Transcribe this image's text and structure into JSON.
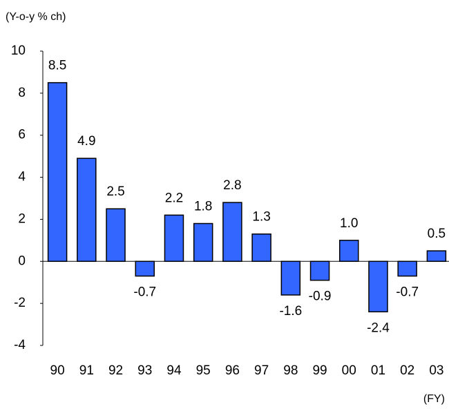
{
  "chart_data": {
    "type": "bar",
    "y_unit_label": "(Y-o-y % ch)",
    "x_unit_label": "(FY)",
    "categories": [
      "90",
      "91",
      "92",
      "93",
      "94",
      "95",
      "96",
      "97",
      "98",
      "99",
      "00",
      "01",
      "02",
      "03"
    ],
    "values": [
      8.5,
      4.9,
      2.5,
      -0.7,
      2.2,
      1.8,
      2.8,
      1.3,
      -1.6,
      -0.9,
      1.0,
      -2.4,
      -0.7,
      0.5
    ],
    "value_labels": [
      "8.5",
      "4.9",
      "2.5",
      "-0.7",
      "2.2",
      "1.8",
      "2.8",
      "1.3",
      "-1.6",
      "-0.9",
      "1.0",
      "-2.4",
      "-0.7",
      "0.5"
    ],
    "color": "#3366ff",
    "ylim": [
      -4,
      10
    ],
    "yticks": [
      -4,
      -2,
      0,
      2,
      4,
      6,
      8,
      10
    ],
    "grid": false
  }
}
